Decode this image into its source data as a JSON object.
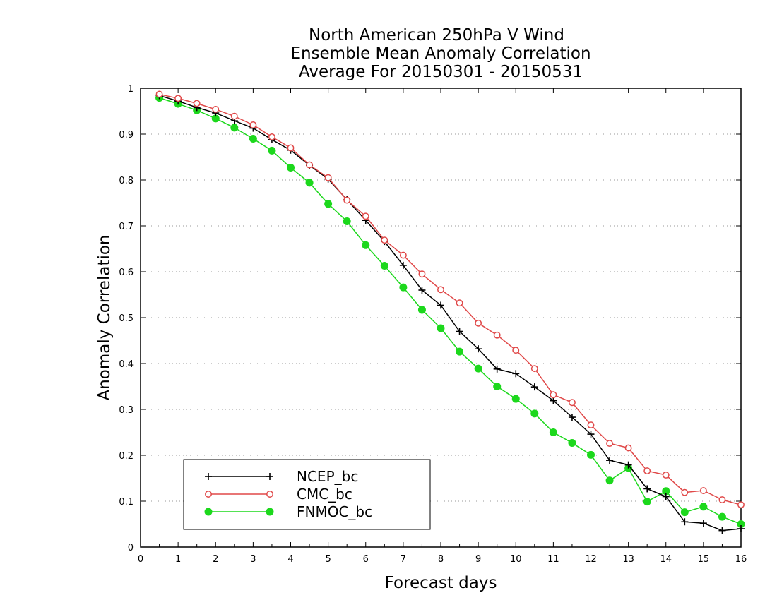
{
  "chart_data": {
    "type": "line",
    "title_lines": [
      "North American 250hPa V Wind",
      "Ensemble Mean Anomaly Correlation",
      "Average For 20150301 - 20150531"
    ],
    "xlabel": "Forecast days",
    "ylabel": "Anomaly Correlation",
    "xlim": [
      0,
      16
    ],
    "ylim": [
      0,
      1
    ],
    "x_ticks": [
      "0",
      "1",
      "2",
      "3",
      "4",
      "5",
      "6",
      "7",
      "8",
      "9",
      "10",
      "11",
      "12",
      "13",
      "14",
      "15",
      "16"
    ],
    "y_ticks": [
      "0",
      "0.1",
      "0.2",
      "0.3",
      "0.4",
      "0.5",
      "0.6",
      "0.7",
      "0.8",
      "0.9",
      "1"
    ],
    "grid": "dotted horizontal",
    "legend_position": "bottom-left",
    "x": [
      0.5,
      1,
      1.5,
      2,
      2.5,
      3,
      3.5,
      4,
      4.5,
      5,
      5.5,
      6,
      6.5,
      7,
      7.5,
      8,
      8.5,
      9,
      9.5,
      10,
      10.5,
      11,
      11.5,
      12,
      12.5,
      13,
      13.5,
      14,
      14.5,
      15,
      15.5,
      16
    ],
    "series": [
      {
        "name": "NCEP_bc",
        "color": "#000000",
        "marker": "plus",
        "values": [
          0.984,
          0.972,
          0.958,
          0.946,
          0.929,
          0.913,
          0.888,
          0.865,
          0.832,
          0.802,
          0.757,
          0.712,
          0.666,
          0.614,
          0.56,
          0.527,
          0.47,
          0.432,
          0.388,
          0.378,
          0.349,
          0.319,
          0.283,
          0.246,
          0.189,
          0.179,
          0.127,
          0.11,
          0.055,
          0.052,
          0.036,
          0.04
        ]
      },
      {
        "name": "CMC_bc",
        "color": "#e04848",
        "marker": "open-circle",
        "values": [
          0.987,
          0.978,
          0.967,
          0.954,
          0.939,
          0.92,
          0.894,
          0.87,
          0.833,
          0.805,
          0.756,
          0.721,
          0.669,
          0.636,
          0.595,
          0.561,
          0.532,
          0.488,
          0.462,
          0.429,
          0.389,
          0.332,
          0.315,
          0.266,
          0.226,
          0.216,
          0.166,
          0.157,
          0.119,
          0.123,
          0.103,
          0.092
        ]
      },
      {
        "name": "FNMOC_bc",
        "color": "#1cd81c",
        "marker": "filled-circle",
        "values": [
          0.979,
          0.966,
          0.952,
          0.934,
          0.914,
          0.89,
          0.864,
          0.827,
          0.794,
          0.748,
          0.71,
          0.658,
          0.613,
          0.566,
          0.517,
          0.477,
          0.426,
          0.389,
          0.35,
          0.323,
          0.291,
          0.25,
          0.227,
          0.201,
          0.145,
          0.172,
          0.099,
          0.122,
          0.076,
          0.088,
          0.066,
          0.05
        ]
      }
    ]
  }
}
